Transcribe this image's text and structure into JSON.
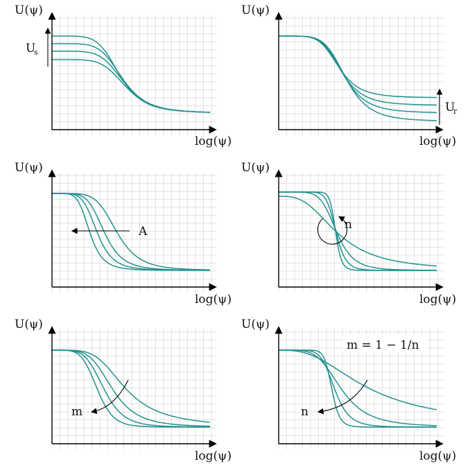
{
  "figure": {
    "y_axis_label": "U(ψ)",
    "x_axis_label": "log(ψ)",
    "curve_color": "#23918f",
    "panels": [
      {
        "id": "p1",
        "annotation": "U",
        "annotation_sub": "s",
        "varies": "saturated value U_s"
      },
      {
        "id": "p2",
        "annotation": "U",
        "annotation_sub": "r",
        "varies": "residual value U_r"
      },
      {
        "id": "p3",
        "annotation": "A",
        "annotation_sub": "",
        "varies": "parameter A"
      },
      {
        "id": "p4",
        "annotation": "n",
        "annotation_sub": "",
        "varies": "parameter n"
      },
      {
        "id": "p5",
        "annotation": "m",
        "annotation_sub": "",
        "varies": "parameter m"
      },
      {
        "id": "p6",
        "annotation": "n",
        "annotation_sub": "",
        "varies": "parameter n",
        "formula": "m = 1 − 1/n"
      }
    ]
  }
}
